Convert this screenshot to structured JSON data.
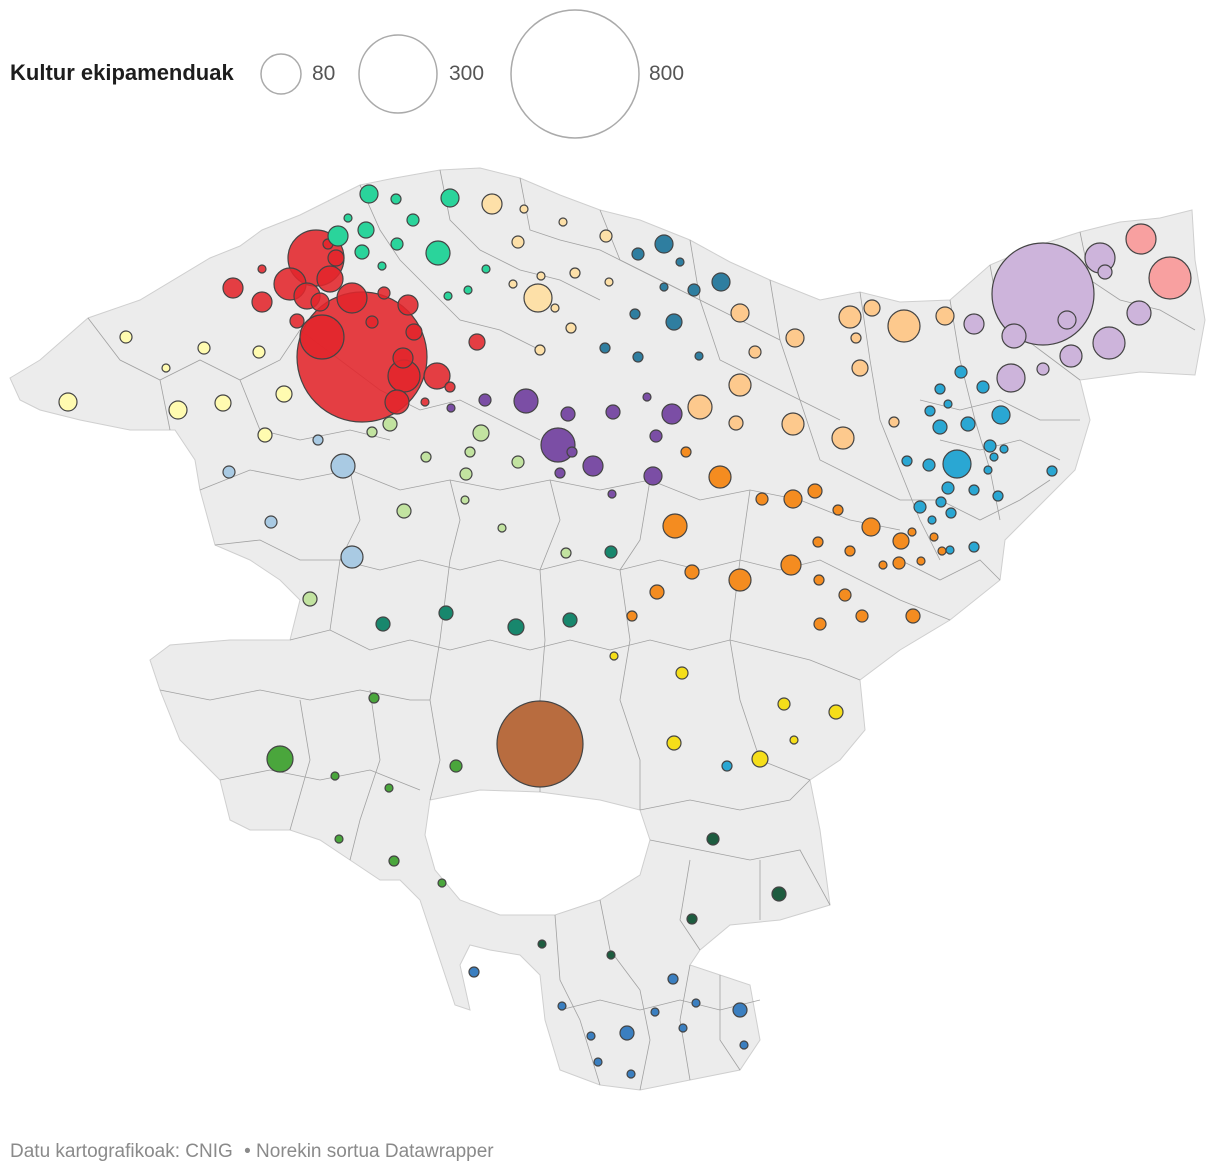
{
  "legend": {
    "title": "Kultur ekipamenduak",
    "sizes": [
      {
        "label": "80",
        "value": 80
      },
      {
        "label": "300",
        "value": 300
      },
      {
        "label": "800",
        "value": 800
      }
    ]
  },
  "footer": {
    "source": "Datu kartografikoak: CNIG",
    "credit": "• Norekin sortua Datawrapper"
  },
  "colors": {
    "land": "#ececec",
    "border": "#7f7f7f",
    "red": "#e3262b",
    "teal_green": "#2ad49b",
    "light_yellow": "#fff59a",
    "pale_orange": "#fdd99b",
    "steel_blue": "#2f7ea0",
    "purple": "#7b4ea5",
    "lavender": "#cdb4db",
    "pink": "#f8a0a0",
    "orange": "#f48c20",
    "sky_blue": "#2aa7d3",
    "light_green": "#c2e3a0",
    "dark_teal": "#18876d",
    "yellow": "#f5de1a",
    "brown": "#b86c3f",
    "green": "#4aa63c",
    "dark_green": "#1d5c3f",
    "blue": "#3b7fc0",
    "light_blue": "#a9cae3"
  }
}
